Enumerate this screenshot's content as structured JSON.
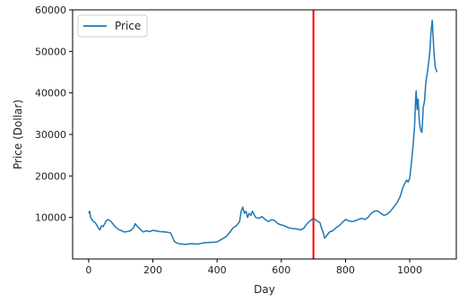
{
  "chart_data": {
    "type": "line",
    "xlabel": "Day",
    "ylabel": "Price (Dollar)",
    "xlim": [
      -50,
      1145
    ],
    "ylim": [
      0,
      60000
    ],
    "xticks": [
      0,
      200,
      400,
      600,
      800,
      1000
    ],
    "yticks": [
      10000,
      20000,
      30000,
      40000,
      50000,
      60000
    ],
    "grid": false,
    "legend": {
      "position": "top-left",
      "entries": [
        "Price"
      ]
    },
    "series": [
      {
        "name": "Price",
        "color": "#1f77b4",
        "points": [
          [
            0,
            11000
          ],
          [
            3,
            11500
          ],
          [
            6,
            10000
          ],
          [
            10,
            9500
          ],
          [
            15,
            9000
          ],
          [
            20,
            8800
          ],
          [
            25,
            8200
          ],
          [
            30,
            7500
          ],
          [
            35,
            7000
          ],
          [
            40,
            8000
          ],
          [
            45,
            7800
          ],
          [
            50,
            8500
          ],
          [
            55,
            9200
          ],
          [
            60,
            9500
          ],
          [
            65,
            9300
          ],
          [
            70,
            9000
          ],
          [
            75,
            8500
          ],
          [
            80,
            8000
          ],
          [
            85,
            7600
          ],
          [
            90,
            7300
          ],
          [
            95,
            7000
          ],
          [
            100,
            6900
          ],
          [
            110,
            6500
          ],
          [
            120,
            6600
          ],
          [
            130,
            6800
          ],
          [
            140,
            7500
          ],
          [
            145,
            8500
          ],
          [
            150,
            8000
          ],
          [
            160,
            7200
          ],
          [
            170,
            6500
          ],
          [
            180,
            6800
          ],
          [
            190,
            6600
          ],
          [
            200,
            6900
          ],
          [
            220,
            6600
          ],
          [
            240,
            6500
          ],
          [
            255,
            6300
          ],
          [
            260,
            5500
          ],
          [
            265,
            4500
          ],
          [
            270,
            4000
          ],
          [
            280,
            3700
          ],
          [
            300,
            3500
          ],
          [
            320,
            3700
          ],
          [
            340,
            3600
          ],
          [
            360,
            3900
          ],
          [
            380,
            4000
          ],
          [
            400,
            4100
          ],
          [
            420,
            5000
          ],
          [
            430,
            5500
          ],
          [
            440,
            6500
          ],
          [
            450,
            7500
          ],
          [
            460,
            8000
          ],
          [
            470,
            9000
          ],
          [
            475,
            11500
          ],
          [
            480,
            12500
          ],
          [
            485,
            11000
          ],
          [
            490,
            11500
          ],
          [
            495,
            10000
          ],
          [
            500,
            11000
          ],
          [
            505,
            10500
          ],
          [
            510,
            11500
          ],
          [
            520,
            10000
          ],
          [
            530,
            9800
          ],
          [
            540,
            10200
          ],
          [
            550,
            9500
          ],
          [
            560,
            9000
          ],
          [
            570,
            9500
          ],
          [
            580,
            9200
          ],
          [
            590,
            8500
          ],
          [
            600,
            8200
          ],
          [
            610,
            8000
          ],
          [
            620,
            7600
          ],
          [
            630,
            7400
          ],
          [
            640,
            7300
          ],
          [
            650,
            7200
          ],
          [
            660,
            7000
          ],
          [
            670,
            7400
          ],
          [
            680,
            8500
          ],
          [
            690,
            9200
          ],
          [
            700,
            9800
          ],
          [
            710,
            9200
          ],
          [
            720,
            8800
          ],
          [
            725,
            7500
          ],
          [
            730,
            6500
          ],
          [
            735,
            5000
          ],
          [
            740,
            5500
          ],
          [
            750,
            6500
          ],
          [
            760,
            6800
          ],
          [
            770,
            7500
          ],
          [
            780,
            8000
          ],
          [
            790,
            8800
          ],
          [
            800,
            9500
          ],
          [
            810,
            9200
          ],
          [
            820,
            9000
          ],
          [
            830,
            9200
          ],
          [
            840,
            9500
          ],
          [
            850,
            9800
          ],
          [
            860,
            9500
          ],
          [
            870,
            10000
          ],
          [
            880,
            11000
          ],
          [
            890,
            11500
          ],
          [
            900,
            11600
          ],
          [
            910,
            11000
          ],
          [
            920,
            10500
          ],
          [
            930,
            10800
          ],
          [
            940,
            11500
          ],
          [
            950,
            12500
          ],
          [
            960,
            13500
          ],
          [
            970,
            15000
          ],
          [
            980,
            17500
          ],
          [
            990,
            19000
          ],
          [
            995,
            18500
          ],
          [
            1000,
            19500
          ],
          [
            1005,
            23000
          ],
          [
            1010,
            27000
          ],
          [
            1015,
            32000
          ],
          [
            1018,
            38000
          ],
          [
            1020,
            40500
          ],
          [
            1023,
            36000
          ],
          [
            1026,
            38500
          ],
          [
            1030,
            33000
          ],
          [
            1034,
            31000
          ],
          [
            1038,
            30500
          ],
          [
            1042,
            36500
          ],
          [
            1046,
            38000
          ],
          [
            1050,
            42500
          ],
          [
            1055,
            45000
          ],
          [
            1060,
            48000
          ],
          [
            1063,
            50500
          ],
          [
            1066,
            54500
          ],
          [
            1070,
            57500
          ],
          [
            1073,
            53000
          ],
          [
            1076,
            49000
          ],
          [
            1080,
            46000
          ],
          [
            1085,
            45000
          ]
        ]
      }
    ],
    "vlines": [
      {
        "x": 700,
        "color": "#ff0000"
      }
    ]
  }
}
